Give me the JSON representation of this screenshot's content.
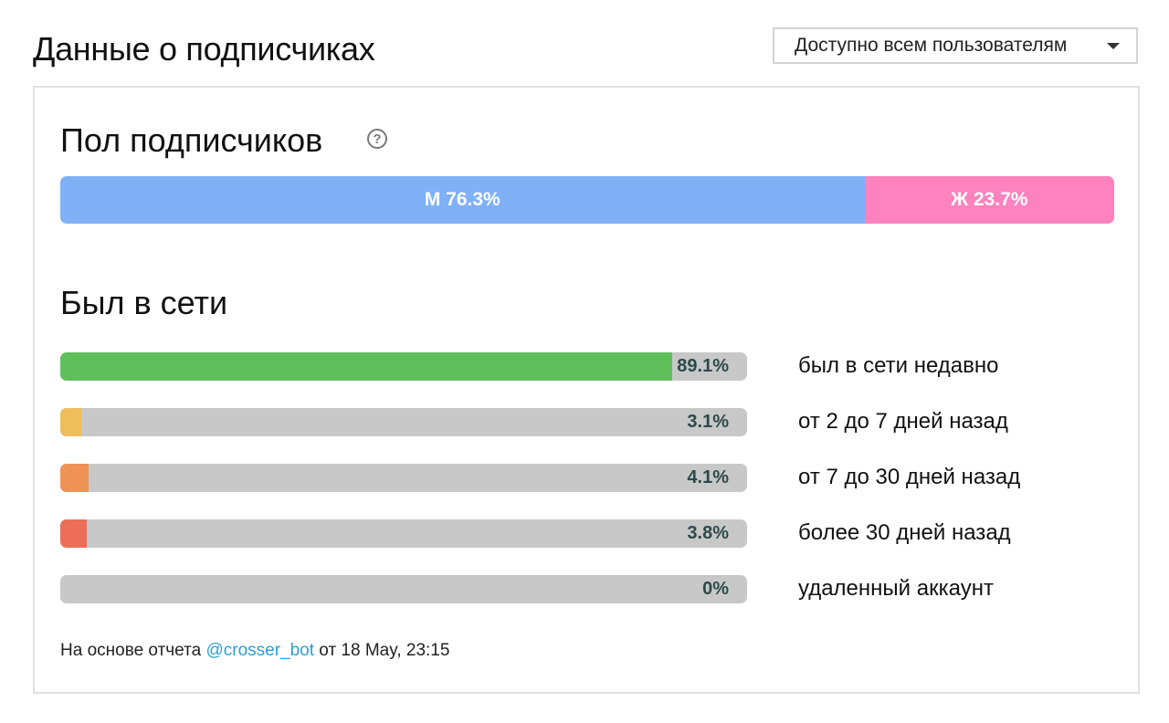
{
  "header": {
    "title": "Данные о подписчиках",
    "visibility_dropdown": {
      "selected": "Доступно всем пользователям",
      "icon": "chevron-down-icon"
    }
  },
  "sex_section": {
    "title": "Пол подписчиков",
    "help_icon": "question-circle-icon",
    "segments": [
      {
        "label": "М 76.3%",
        "value": 76.3,
        "color": "#80b1f7"
      },
      {
        "label": "Ж 23.7%",
        "value": 23.7,
        "color": "#fd82bd"
      }
    ]
  },
  "online_section": {
    "title": "Был в сети",
    "track_color": "#c8c8c8",
    "rows": [
      {
        "percent_label": "89.1%",
        "value": 89.1,
        "label": "был в сети недавно",
        "color": "#5fbf5b"
      },
      {
        "percent_label": "3.1%",
        "value": 3.1,
        "label": "от 2 до 7 дней назад",
        "color": "#edbe5b"
      },
      {
        "percent_label": "4.1%",
        "value": 4.1,
        "label": "от 7 до 30 дней назад",
        "color": "#ee9255"
      },
      {
        "percent_label": "3.8%",
        "value": 3.8,
        "label": "более 30 дней назад",
        "color": "#ec6e58"
      },
      {
        "percent_label": "0%",
        "value": 0,
        "label": "удаленный аккаунт",
        "color": "#9a9a9a"
      }
    ]
  },
  "footer": {
    "prefix": "На основе отчета",
    "link": "@crosser_bot",
    "suffix": "от 18 May, 23:15"
  }
}
